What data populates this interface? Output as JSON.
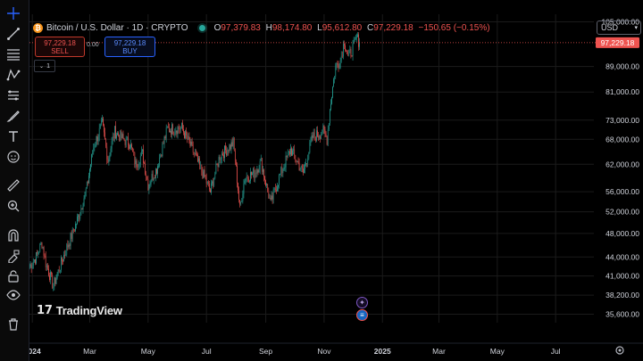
{
  "header": {
    "title": "Bitcoin / U.S. Dollar · 1D · CRYPTO",
    "btc_symbol": "₿",
    "o_label": "O",
    "o_value": "97,379.83",
    "h_label": "H",
    "h_value": "98,174.80",
    "l_label": "L",
    "l_value": "95,612.80",
    "c_label": "C",
    "c_value": "97,229.18",
    "change": "−150.65 (−0.15%)"
  },
  "trade": {
    "sell_price": "97,229.18",
    "sell_label": "SELL",
    "spread": "0.00",
    "buy_price": "97,229.18",
    "buy_label": "BUY"
  },
  "indicator_count": "1",
  "currency": "USD",
  "logo": "TradingView",
  "colors": {
    "up": "#26a69a",
    "down": "#ef5350",
    "last": "#ef5350",
    "bg": "#000000",
    "grid": "#1b1b1b"
  },
  "toolbar_icons": [
    "crosshair-icon",
    "trend-line-icon",
    "fib-icon",
    "pattern-icon",
    "forecast-icon",
    "brush-icon",
    "text-icon",
    "emoji-icon",
    "ruler-icon",
    "zoom-icon",
    "magnet-icon",
    "lock-draw-icon",
    "lock-icon",
    "eye-icon",
    "trash-icon"
  ],
  "chart_data": {
    "type": "candlestick",
    "title": "Bitcoin / U.S. Dollar · 1D · CRYPTO",
    "y_scale": "log",
    "ylim": [
      34500,
      108000
    ],
    "y_ticks": [
      105000,
      97229.18,
      89000,
      81000,
      73000,
      68000,
      62000,
      56000,
      52000,
      48000,
      44000,
      41000,
      38200,
      35600
    ],
    "y_tick_labels": [
      "105,000.00",
      "97,229.18",
      "89,000.00",
      "81,000.00",
      "73,000.00",
      "68,000.00",
      "62,000.00",
      "56,000.00",
      "52,000.00",
      "48,000.00",
      "44,000.00",
      "41,000.00",
      "38,200.00",
      "35,600.00"
    ],
    "x_tick_labels": [
      "2024",
      "Mar",
      "May",
      "Jul",
      "Sep",
      "Nov",
      "2025",
      "Mar",
      "May",
      "Jul"
    ],
    "x_tick_dates": [
      "2024-01-01",
      "2024-03-01",
      "2024-05-01",
      "2024-07-01",
      "2024-09-01",
      "2024-11-01",
      "2025-01-01",
      "2025-03-01",
      "2025-05-01",
      "2025-07-01"
    ],
    "xlim": [
      "2023-12-29",
      "2025-08-10"
    ],
    "last_price": 97229.18,
    "anchors": [
      [
        "2023-12-29",
        42500
      ],
      [
        "2024-01-05",
        44000
      ],
      [
        "2024-01-11",
        46500
      ],
      [
        "2024-01-15",
        43000
      ],
      [
        "2024-01-23",
        39500
      ],
      [
        "2024-01-31",
        43000
      ],
      [
        "2024-02-12",
        48000
      ],
      [
        "2024-02-20",
        52000
      ],
      [
        "2024-02-27",
        57000
      ],
      [
        "2024-03-05",
        66000
      ],
      [
        "2024-03-14",
        72000
      ],
      [
        "2024-03-20",
        63000
      ],
      [
        "2024-03-27",
        70000
      ],
      [
        "2024-04-05",
        68000
      ],
      [
        "2024-04-12",
        67000
      ],
      [
        "2024-04-18",
        62000
      ],
      [
        "2024-04-25",
        64500
      ],
      [
        "2024-05-01",
        57500
      ],
      [
        "2024-05-10",
        61000
      ],
      [
        "2024-05-21",
        70500
      ],
      [
        "2024-06-05",
        71000
      ],
      [
        "2024-06-15",
        66000
      ],
      [
        "2024-06-25",
        61000
      ],
      [
        "2024-07-05",
        56000
      ],
      [
        "2024-07-15",
        64000
      ],
      [
        "2024-07-29",
        67000
      ],
      [
        "2024-08-05",
        52500
      ],
      [
        "2024-08-10",
        59000
      ],
      [
        "2024-08-20",
        60000
      ],
      [
        "2024-08-27",
        62500
      ],
      [
        "2024-09-06",
        53500
      ],
      [
        "2024-09-15",
        59000
      ],
      [
        "2024-09-27",
        65500
      ],
      [
        "2024-10-10",
        60000
      ],
      [
        "2024-10-20",
        68500
      ],
      [
        "2024-10-31",
        70000
      ],
      [
        "2024-11-04",
        68000
      ],
      [
        "2024-11-07",
        76000
      ],
      [
        "2024-11-13",
        89000
      ],
      [
        "2024-11-18",
        91000
      ],
      [
        "2024-11-22",
        98000
      ],
      [
        "2024-11-26",
        92000
      ],
      [
        "2024-12-02",
        96000
      ],
      [
        "2024-12-05",
        99000
      ],
      [
        "2024-12-08",
        97229.18
      ]
    ]
  }
}
